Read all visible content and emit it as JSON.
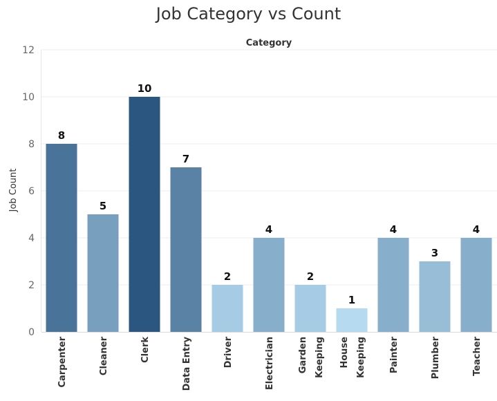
{
  "chart_data": {
    "type": "bar",
    "title": "Job Category vs Count",
    "column_header": "Category",
    "ylabel": "Job Count",
    "ylim": [
      0,
      12
    ],
    "yticks": [
      0,
      2,
      4,
      6,
      8,
      10,
      12
    ],
    "grid": true,
    "categories": [
      "Carpenter",
      "Cleaner",
      "Clerk",
      "Data Entry",
      "Driver",
      "Electrician",
      "Garden Keeping",
      "House Keeping",
      "Painter",
      "Plumber",
      "Teacher"
    ],
    "category_lines": [
      [
        "Carpenter"
      ],
      [
        "Cleaner"
      ],
      [
        "Clerk"
      ],
      [
        "Data Entry"
      ],
      [
        "Driver"
      ],
      [
        "Electrician"
      ],
      [
        "Garden",
        "Keeping"
      ],
      [
        "House",
        "Keeping"
      ],
      [
        "Painter"
      ],
      [
        "Plumber"
      ],
      [
        "Teacher"
      ]
    ],
    "values": [
      8,
      5,
      10,
      7,
      2,
      4,
      2,
      1,
      4,
      3,
      4
    ],
    "colors": {
      "bar_min": "#b6daf0",
      "bar_max": "#2a5680",
      "gridline": "#ececec"
    }
  }
}
